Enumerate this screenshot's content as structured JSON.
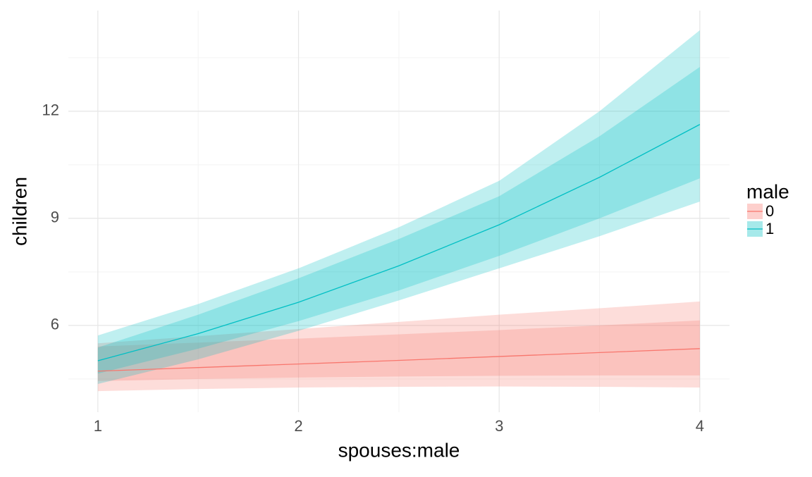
{
  "chart_data": {
    "type": "line",
    "x_label": "spouses:male",
    "y_label": "children",
    "legend_title": "male",
    "legend_position": "right",
    "x": [
      1,
      1.5,
      2,
      2.5,
      3,
      3.5,
      4
    ],
    "series": [
      {
        "name": "0",
        "color": "#F8766D",
        "values": [
          4.72,
          4.82,
          4.92,
          5.02,
          5.13,
          5.24,
          5.35
        ],
        "bands": [
          {
            "lower": [
              4.16,
              4.22,
              4.26,
              4.28,
              4.29,
              4.28,
              4.26
            ],
            "upper": [
              5.5,
              5.7,
              5.9,
              6.1,
              6.3,
              6.48,
              6.67
            ]
          },
          {
            "lower": [
              4.44,
              4.5,
              4.54,
              4.57,
              4.59,
              4.6,
              4.6
            ],
            "upper": [
              5.41,
              5.52,
              5.63,
              5.75,
              5.87,
              6.0,
              6.14
            ]
          }
        ]
      },
      {
        "name": "1",
        "color": "#00BFC4",
        "values": [
          5.01,
          5.77,
          6.65,
          7.67,
          8.82,
          10.15,
          11.63
        ],
        "bands": [
          {
            "lower": [
              4.36,
              5.05,
              5.85,
              6.7,
              7.6,
              8.5,
              9.47
            ],
            "upper": [
              5.72,
              6.6,
              7.6,
              8.75,
              10.05,
              12.0,
              14.27
            ]
          },
          {
            "lower": [
              4.65,
              5.35,
              6.12,
              6.98,
              7.95,
              9.0,
              10.12
            ],
            "upper": [
              5.38,
              6.3,
              7.32,
              8.42,
              9.62,
              11.3,
              13.24
            ]
          }
        ]
      }
    ],
    "xlim": [
      0.853,
      4.148
    ],
    "ylim": [
      3.57,
      14.82
    ],
    "xticks": [
      1,
      2,
      3,
      4
    ],
    "yticks": [
      6,
      9,
      12
    ],
    "minor_xticks": [
      1.5,
      2.5,
      3.5
    ],
    "minor_yticks": [
      4.5,
      7.5,
      10.5,
      13.5
    ],
    "grid": true
  }
}
